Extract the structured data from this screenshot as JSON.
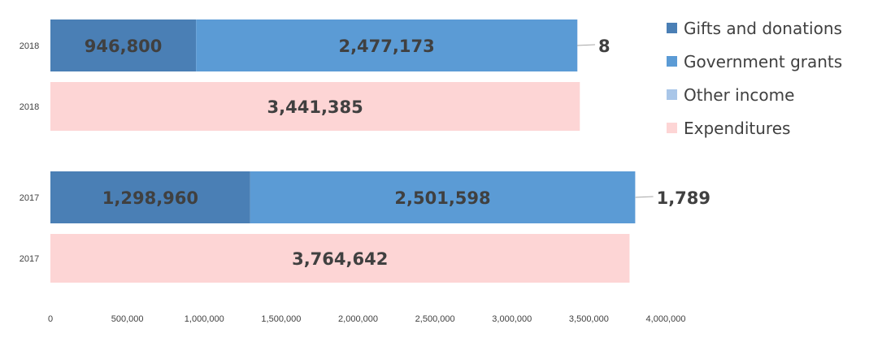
{
  "chart_data": {
    "type": "bar",
    "orientation": "horizontal",
    "stacked": true,
    "categories": [
      "2018",
      "2018",
      "2017",
      "2017"
    ],
    "series": [
      {
        "name": "Gifts and donations",
        "color": "#4a7fb5",
        "values": [
          946800,
          null,
          1298960,
          null
        ]
      },
      {
        "name": "Government grants",
        "color": "#5b9bd5",
        "values": [
          2477173,
          null,
          2501598,
          null
        ]
      },
      {
        "name": "Other income",
        "color": "#a9c6e8",
        "values": [
          8,
          null,
          1789,
          null
        ]
      },
      {
        "name": "Expenditures",
        "color": "#fdd5d5",
        "values": [
          null,
          3441385,
          null,
          3764642
        ]
      }
    ],
    "data_labels": [
      [
        "946,800",
        "2,477,173",
        "8",
        ""
      ],
      [
        "",
        "",
        "",
        "3,441,385"
      ],
      [
        "1,298,960",
        "2,501,598",
        "1,789",
        ""
      ],
      [
        "",
        "",
        "",
        "3,764,642"
      ]
    ],
    "xticks": [
      "0",
      "500,000",
      "1,000,000",
      "1,500,000",
      "2,000,000",
      "2,500,000",
      "3,000,000",
      "3,500,000",
      "4,000,000"
    ],
    "xlim": [
      0,
      4000000
    ],
    "grid": false,
    "legend_position": "right",
    "title": "",
    "xlabel": "",
    "ylabel": ""
  }
}
